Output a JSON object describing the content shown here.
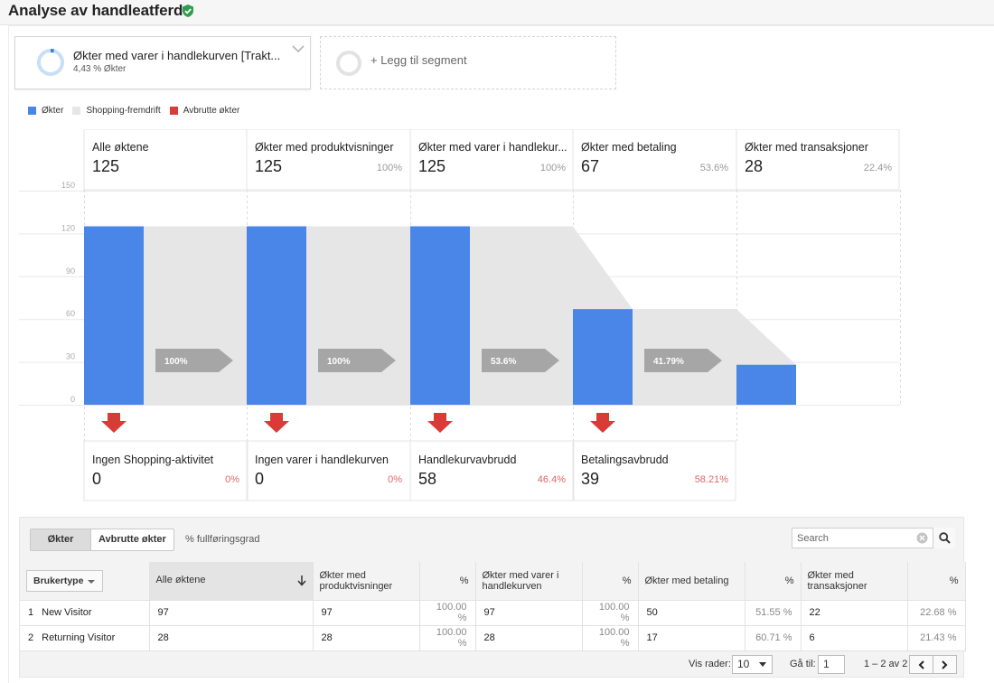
{
  "page": {
    "title": "Analyse av handleatferd"
  },
  "segment": {
    "name": "Økter med varer i handlekurven [Trakt...",
    "percent_label": "4,43 % Økter",
    "percent": 4.43,
    "add_label": "+ Legg til segment"
  },
  "legend": [
    {
      "label": "Økter",
      "color": "#4a86e8"
    },
    {
      "label": "Shopping-fremdrift",
      "color": "#e6e6e6"
    },
    {
      "label": "Avbrutte økter",
      "color": "#d93b36"
    }
  ],
  "chart_data": {
    "type": "bar",
    "categories": [
      "Alle øktene",
      "Økter med produktvisninger",
      "Økter med varer i handlekur...",
      "Økter med betaling",
      "Økter med transaksjoner"
    ],
    "values": [
      125,
      125,
      125,
      67,
      28
    ],
    "step_percents": [
      "",
      "100%",
      "100%",
      "53.6%",
      "22.4%"
    ],
    "ylim": [
      0,
      150
    ],
    "yticks": [
      "150",
      "120",
      "90",
      "60",
      "30",
      "0"
    ],
    "progression_labels": [
      "100%",
      "100%",
      "53.6%",
      "41.79%"
    ],
    "abandonment": [
      {
        "label": "Ingen Shopping-aktivitet",
        "value": "0",
        "percent": "0%"
      },
      {
        "label": "Ingen varer i handlekurven",
        "value": "0",
        "percent": "0%"
      },
      {
        "label": "Handlekurvavbrudd",
        "value": "58",
        "percent": "46.4%"
      },
      {
        "label": "Betalingsavbrudd",
        "value": "39",
        "percent": "58.21%"
      }
    ],
    "grid": true,
    "colors": {
      "bar": "#4a86e8",
      "flow": "#e6e6e6",
      "arrow": "#a6a6a6",
      "drop": "#d93b36"
    }
  },
  "table": {
    "tabs": [
      "Økter",
      "Avbrutte økter"
    ],
    "completion_label": "% fullføringsgrad",
    "search_placeholder": "Search",
    "dimension_label": "Brukertype",
    "columns": [
      "Alle øktene",
      "Økter med produktvisninger",
      "%",
      "Økter med varer i handlekurven",
      "%",
      "Økter med betaling",
      "%",
      "Økter med transaksjoner",
      "%"
    ],
    "rows": [
      {
        "index": "1",
        "name": "New Visitor",
        "cells": [
          "97",
          "97",
          "100.00 %",
          "97",
          "100.00 %",
          "50",
          "51.55 %",
          "22",
          "22.68 %"
        ]
      },
      {
        "index": "2",
        "name": "Returning Visitor",
        "cells": [
          "28",
          "28",
          "100.00 %",
          "28",
          "100.00 %",
          "17",
          "60.71 %",
          "6",
          "21.43 %"
        ]
      }
    ],
    "pager": {
      "rows_label": "Vis rader:",
      "rows_value": "10",
      "goto_label": "Gå til:",
      "goto_value": "1",
      "range": "1 – 2 av 2"
    }
  }
}
